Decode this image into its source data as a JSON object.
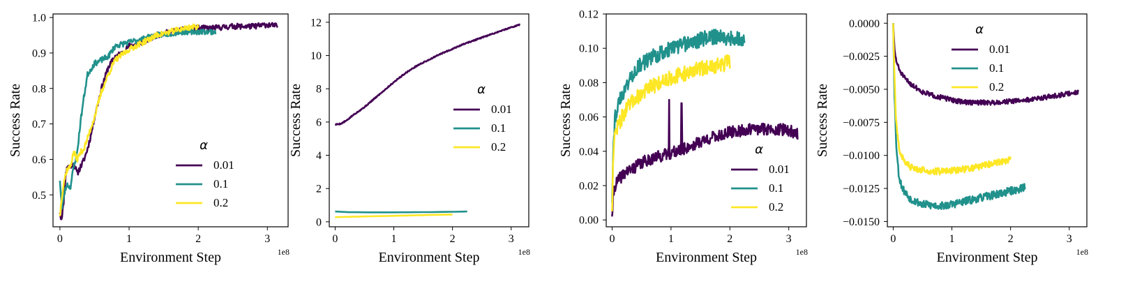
{
  "figure": {
    "colors": {
      "0.01": "#440154",
      "0.1": "#21918c",
      "0.2": "#fde725"
    }
  },
  "chart_data": [
    {
      "type": "line",
      "title": "",
      "xlabel": "Environment Step",
      "ylabel": "Success Rate",
      "x_scale_label": "1e8",
      "xlim": [
        -0.1,
        3.3
      ],
      "ylim": [
        0.41,
        1.01
      ],
      "xticks": [
        0,
        1,
        2,
        3
      ],
      "xtick_labels": [
        "0",
        "1",
        "2",
        "3"
      ],
      "yticks": [
        0.5,
        0.6,
        0.7,
        0.8,
        0.9,
        1.0
      ],
      "ytick_labels": [
        "0.5",
        "0.6",
        "0.7",
        "0.8",
        "0.9",
        "1.0"
      ],
      "legend": {
        "title": "α",
        "position": "lower-right"
      },
      "series": [
        {
          "name": "0.01",
          "color": "#440154",
          "noise": 0.008,
          "seed": 11,
          "x": [
            0,
            0.02,
            0.05,
            0.08,
            0.1,
            0.15,
            0.2,
            0.25,
            0.3,
            0.35,
            0.4,
            0.45,
            0.5,
            0.6,
            0.7,
            0.8,
            0.9,
            1.0,
            1.2,
            1.4,
            1.6,
            1.8,
            2.0,
            2.2,
            2.5,
            2.8,
            3.0,
            3.15
          ],
          "y": [
            0.45,
            0.43,
            0.47,
            0.55,
            0.58,
            0.58,
            0.59,
            0.56,
            0.58,
            0.6,
            0.63,
            0.67,
            0.72,
            0.8,
            0.86,
            0.89,
            0.9,
            0.92,
            0.93,
            0.95,
            0.96,
            0.965,
            0.97,
            0.97,
            0.975,
            0.975,
            0.98,
            0.975
          ]
        },
        {
          "name": "0.1",
          "color": "#21918c",
          "noise": 0.008,
          "seed": 23,
          "x": [
            0,
            0.03,
            0.06,
            0.1,
            0.15,
            0.2,
            0.25,
            0.3,
            0.35,
            0.4,
            0.5,
            0.6,
            0.7,
            0.8,
            1.0,
            1.2,
            1.4,
            1.6,
            1.8,
            2.0,
            2.25
          ],
          "y": [
            0.54,
            0.46,
            0.5,
            0.53,
            0.52,
            0.58,
            0.62,
            0.71,
            0.78,
            0.84,
            0.87,
            0.88,
            0.89,
            0.92,
            0.93,
            0.94,
            0.95,
            0.955,
            0.96,
            0.96,
            0.96
          ]
        },
        {
          "name": "0.2",
          "color": "#fde725",
          "noise": 0.008,
          "seed": 37,
          "x": [
            0,
            0.03,
            0.06,
            0.1,
            0.15,
            0.2,
            0.25,
            0.3,
            0.35,
            0.4,
            0.5,
            0.6,
            0.7,
            0.8,
            1.0,
            1.2,
            1.4,
            1.6,
            1.8,
            2.0
          ],
          "y": [
            0.44,
            0.5,
            0.54,
            0.57,
            0.58,
            0.62,
            0.6,
            0.62,
            0.63,
            0.66,
            0.72,
            0.79,
            0.84,
            0.88,
            0.91,
            0.93,
            0.95,
            0.96,
            0.97,
            0.975
          ]
        }
      ]
    },
    {
      "type": "line",
      "title": "",
      "xlabel": "Environment Step",
      "ylabel": "Success Rate",
      "x_scale_label": "1e8",
      "xlim": [
        -0.1,
        3.3
      ],
      "ylim": [
        -0.3,
        12.5
      ],
      "xticks": [
        0,
        1,
        2,
        3
      ],
      "xtick_labels": [
        "0",
        "1",
        "2",
        "3"
      ],
      "yticks": [
        0,
        2,
        4,
        6,
        8,
        10,
        12
      ],
      "ytick_labels": [
        "0",
        "2",
        "4",
        "6",
        "8",
        "10",
        "12"
      ],
      "legend": {
        "title": "α",
        "position": "center-right"
      },
      "series": [
        {
          "name": "0.01",
          "color": "#440154",
          "noise": 0.035,
          "seed": 5,
          "x": [
            0,
            0.1,
            0.2,
            0.3,
            0.5,
            0.7,
            0.9,
            1.0,
            1.2,
            1.4,
            1.6,
            1.8,
            2.0,
            2.2,
            2.4,
            2.6,
            2.8,
            3.0,
            3.15
          ],
          "y": [
            5.85,
            5.9,
            6.1,
            6.4,
            6.9,
            7.5,
            8.1,
            8.4,
            8.95,
            9.4,
            9.75,
            10.1,
            10.4,
            10.7,
            10.95,
            11.2,
            11.45,
            11.7,
            11.85
          ]
        },
        {
          "name": "0.1",
          "color": "#21918c",
          "noise": 0.0,
          "seed": 6,
          "x": [
            0,
            0.2,
            0.5,
            1.0,
            1.5,
            2.0,
            2.25
          ],
          "y": [
            0.62,
            0.58,
            0.57,
            0.57,
            0.58,
            0.6,
            0.62
          ]
        },
        {
          "name": "0.2",
          "color": "#fde725",
          "noise": 0.0,
          "seed": 7,
          "x": [
            0,
            0.5,
            1.0,
            1.5,
            2.0
          ],
          "y": [
            0.28,
            0.32,
            0.36,
            0.4,
            0.44
          ]
        }
      ]
    },
    {
      "type": "line",
      "title": "",
      "xlabel": "Environment Step",
      "ylabel": "Success Rate",
      "x_scale_label": "1e8",
      "xlim": [
        -0.1,
        3.3
      ],
      "ylim": [
        -0.004,
        0.12
      ],
      "xticks": [
        0,
        1,
        2,
        3
      ],
      "xtick_labels": [
        "0",
        "1",
        "2",
        "3"
      ],
      "yticks": [
        0.0,
        0.02,
        0.04,
        0.06,
        0.08,
        0.1,
        0.12
      ],
      "ytick_labels": [
        "0.00",
        "0.02",
        "0.04",
        "0.06",
        "0.08",
        "0.10",
        "0.12"
      ],
      "legend": {
        "title": "α",
        "position": "lower-right"
      },
      "series": [
        {
          "name": "0.01",
          "color": "#440154",
          "noise": 0.0035,
          "seed": 41,
          "x": [
            0,
            0.02,
            0.05,
            0.1,
            0.2,
            0.3,
            0.4,
            0.5,
            0.6,
            0.7,
            0.8,
            0.9,
            1.0,
            1.2,
            1.4,
            1.6,
            1.8,
            2.0,
            2.2,
            2.5,
            2.8,
            3.0,
            3.15
          ],
          "y": [
            0.002,
            0.015,
            0.02,
            0.023,
            0.027,
            0.029,
            0.031,
            0.033,
            0.035,
            0.036,
            0.037,
            0.038,
            0.039,
            0.041,
            0.044,
            0.047,
            0.049,
            0.051,
            0.052,
            0.053,
            0.053,
            0.052,
            0.05
          ],
          "spikes": [
            [
              0.97,
              0.07
            ],
            [
              1.18,
              0.068
            ]
          ]
        },
        {
          "name": "0.1",
          "color": "#21918c",
          "noise": 0.0045,
          "seed": 43,
          "x": [
            0,
            0.02,
            0.05,
            0.1,
            0.2,
            0.3,
            0.4,
            0.6,
            0.8,
            1.0,
            1.2,
            1.4,
            1.6,
            1.8,
            2.0,
            2.25
          ],
          "y": [
            0.01,
            0.045,
            0.06,
            0.067,
            0.075,
            0.082,
            0.088,
            0.093,
            0.097,
            0.1,
            0.102,
            0.104,
            0.106,
            0.107,
            0.106,
            0.105
          ]
        },
        {
          "name": "0.2",
          "color": "#fde725",
          "noise": 0.0045,
          "seed": 47,
          "x": [
            0,
            0.02,
            0.05,
            0.1,
            0.2,
            0.3,
            0.4,
            0.6,
            0.8,
            1.0,
            1.2,
            1.4,
            1.6,
            1.8,
            2.0
          ],
          "y": [
            0.005,
            0.04,
            0.05,
            0.055,
            0.062,
            0.067,
            0.071,
            0.076,
            0.08,
            0.083,
            0.085,
            0.087,
            0.089,
            0.09,
            0.092
          ]
        }
      ]
    },
    {
      "type": "line",
      "title": "",
      "xlabel": "Environment Step",
      "ylabel": "Success Rate",
      "x_scale_label": "1e8",
      "xlim": [
        -0.1,
        3.3
      ],
      "ylim": [
        -0.0154,
        0.0007
      ],
      "xticks": [
        0,
        1,
        2,
        3
      ],
      "xtick_labels": [
        "0",
        "1",
        "2",
        "3"
      ],
      "yticks": [
        0.0,
        -0.0025,
        -0.005,
        -0.0075,
        -0.01,
        -0.0125,
        -0.015
      ],
      "ytick_labels": [
        "0.0000",
        "−0.0025",
        "−0.0050",
        "−0.0075",
        "−0.0100",
        "−0.0125",
        "−0.0150"
      ],
      "legend": {
        "title": "α",
        "position": "upper-right"
      },
      "series": [
        {
          "name": "0.01",
          "color": "#440154",
          "noise": 0.00018,
          "seed": 51,
          "x": [
            0,
            0.02,
            0.05,
            0.1,
            0.2,
            0.3,
            0.4,
            0.5,
            0.7,
            0.9,
            1.1,
            1.3,
            1.5,
            1.7,
            2.0,
            2.3,
            2.6,
            2.9,
            3.15
          ],
          "y": [
            0.0,
            -0.002,
            -0.0028,
            -0.0035,
            -0.0042,
            -0.0046,
            -0.0049,
            -0.0052,
            -0.0055,
            -0.0057,
            -0.0059,
            -0.006,
            -0.006,
            -0.006,
            -0.0059,
            -0.0058,
            -0.0056,
            -0.0054,
            -0.0052
          ]
        },
        {
          "name": "0.1",
          "color": "#21918c",
          "noise": 0.0003,
          "seed": 53,
          "x": [
            0,
            0.02,
            0.05,
            0.08,
            0.1,
            0.15,
            0.2,
            0.3,
            0.5,
            0.7,
            0.9,
            1.1,
            1.3,
            1.5,
            1.7,
            1.9,
            2.1,
            2.25
          ],
          "y": [
            0.0,
            -0.005,
            -0.009,
            -0.0108,
            -0.0116,
            -0.0124,
            -0.0128,
            -0.0133,
            -0.0137,
            -0.0138,
            -0.0138,
            -0.0136,
            -0.0134,
            -0.0132,
            -0.013,
            -0.0128,
            -0.0126,
            -0.0124
          ]
        },
        {
          "name": "0.2",
          "color": "#fde725",
          "noise": 0.00025,
          "seed": 57,
          "x": [
            0,
            0.02,
            0.05,
            0.08,
            0.1,
            0.15,
            0.2,
            0.3,
            0.5,
            0.7,
            0.9,
            1.1,
            1.3,
            1.5,
            1.7,
            1.9,
            2.0
          ],
          "y": [
            0.0,
            -0.004,
            -0.0075,
            -0.0088,
            -0.0094,
            -0.0101,
            -0.0105,
            -0.0109,
            -0.0111,
            -0.0112,
            -0.0112,
            -0.0111,
            -0.011,
            -0.0108,
            -0.0106,
            -0.0104,
            -0.0103
          ]
        }
      ]
    }
  ]
}
